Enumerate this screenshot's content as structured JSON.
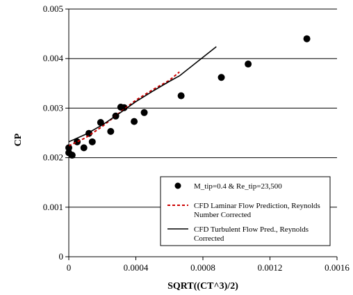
{
  "chart_data": {
    "type": "scatter",
    "title": "",
    "xlabel": "SQRT((CT^3)/2)",
    "ylabel": "CP",
    "xlim": [
      0,
      0.0016
    ],
    "ylim": [
      0,
      0.005
    ],
    "x_ticks": [
      "0",
      "0.0004",
      "0.0008",
      "0.0012",
      "0.0016"
    ],
    "y_ticks": [
      "0",
      "0.001",
      "0.002",
      "0.003",
      "0.004",
      "0.005"
    ],
    "x_tick_values": [
      0,
      0.0004,
      0.0008,
      0.0012,
      0.0016
    ],
    "y_tick_values": [
      0,
      0.001,
      0.002,
      0.003,
      0.004,
      0.005
    ],
    "grid": "horizontal",
    "legend_position": "bottom-right",
    "series": [
      {
        "name": "M_tip=0.4 & Re_tip=23,500",
        "kind": "markers",
        "color": "#000000",
        "points": [
          [
            0.0,
            0.0021
          ],
          [
            0.0,
            0.0022
          ],
          [
            2e-05,
            0.00205
          ],
          [
            5e-05,
            0.00232
          ],
          [
            9e-05,
            0.0022
          ],
          [
            0.00012,
            0.00249
          ],
          [
            0.00014,
            0.00232
          ],
          [
            0.00019,
            0.00271
          ],
          [
            0.00025,
            0.00253
          ],
          [
            0.00028,
            0.00284
          ],
          [
            0.00031,
            0.00302
          ],
          [
            0.00033,
            0.00301
          ],
          [
            0.00039,
            0.00273
          ],
          [
            0.00045,
            0.00291
          ],
          [
            0.00067,
            0.00325
          ],
          [
            0.00091,
            0.00362
          ],
          [
            0.00107,
            0.00389
          ],
          [
            0.00142,
            0.0044
          ]
        ]
      },
      {
        "name": "CFD Laminar Flow Prediction, Reynolds Number Corrected",
        "kind": "line",
        "style": "dashed",
        "color": "#cc0000",
        "points": [
          [
            0.0,
            0.00224
          ],
          [
            0.0001,
            0.0024
          ],
          [
            0.0002,
            0.00263
          ],
          [
            0.0003,
            0.0029
          ],
          [
            0.0004,
            0.00316
          ],
          [
            0.0005,
            0.00337
          ],
          [
            0.0006,
            0.00356
          ],
          [
            0.00066,
            0.00373
          ]
        ]
      },
      {
        "name": "CFD Turbulent Flow Pred., Reynolds Corrected",
        "kind": "line",
        "style": "solid",
        "color": "#000000",
        "points": [
          [
            0.0,
            0.00232
          ],
          [
            0.0001,
            0.00247
          ],
          [
            0.0002,
            0.00266
          ],
          [
            0.0003,
            0.00289
          ],
          [
            0.0004,
            0.00313
          ],
          [
            0.0005,
            0.00334
          ],
          [
            0.0006,
            0.00354
          ],
          [
            0.00066,
            0.00365
          ],
          [
            0.00088,
            0.00424
          ]
        ]
      }
    ],
    "legend": [
      {
        "label": "M_tip=0.4 & Re_tip=23,500",
        "symbol": "marker"
      },
      {
        "label_lines": [
          "CFD Laminar Flow Prediction, Reynolds",
          "Number Corrected"
        ],
        "symbol": "dashed"
      },
      {
        "label_lines": [
          "CFD Turbulent Flow Pred., Reynolds",
          "Corrected"
        ],
        "symbol": "solid"
      }
    ]
  }
}
